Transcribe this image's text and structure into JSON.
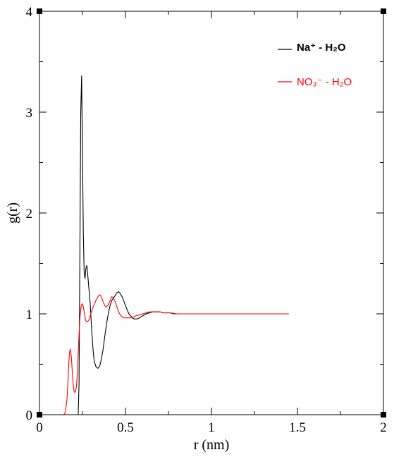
{
  "chart_data": {
    "type": "line",
    "xlabel": "r (nm)",
    "ylabel": "g(r)",
    "xlim": [
      0,
      2
    ],
    "ylim": [
      0,
      4
    ],
    "x_ticks": [
      0,
      0.5,
      1,
      1.5,
      2
    ],
    "x_tick_labels": [
      "0",
      "0.5",
      "1",
      "1.5",
      "2"
    ],
    "y_ticks": [
      0,
      1,
      2,
      3,
      4
    ],
    "y_tick_labels": [
      "0",
      "1",
      "2",
      "3",
      "4"
    ],
    "legend_position": "top-right",
    "series": [
      {
        "name": "Na⁺ - H₂O",
        "color": "#000000",
        "x": [
          0.15,
          0.17,
          0.19,
          0.2,
          0.208,
          0.215,
          0.22,
          0.225,
          0.23,
          0.235,
          0.24,
          0.245,
          0.25,
          0.255,
          0.26,
          0.265,
          0.27,
          0.275,
          0.28,
          0.285,
          0.29,
          0.295,
          0.3,
          0.305,
          0.31,
          0.315,
          0.32,
          0.33,
          0.34,
          0.35,
          0.36,
          0.37,
          0.38,
          0.39,
          0.4,
          0.41,
          0.42,
          0.43,
          0.44,
          0.45,
          0.46,
          0.47,
          0.48,
          0.49,
          0.5,
          0.51,
          0.52,
          0.53,
          0.54,
          0.55,
          0.56,
          0.57,
          0.58,
          0.59,
          0.6,
          0.62,
          0.64,
          0.66,
          0.68,
          0.7,
          0.72,
          0.74,
          0.76,
          0.78,
          0.8,
          0.85,
          0.9,
          0.95,
          1.0,
          1.05,
          1.1,
          1.15,
          1.2,
          1.25,
          1.3,
          1.35,
          1.4,
          1.45
        ],
        "y": [
          0.0,
          0.0,
          0.0,
          0.0,
          0.0,
          0.0,
          0.0,
          0.0,
          0.3,
          1.6,
          3.0,
          3.36,
          2.6,
          1.8,
          1.4,
          1.35,
          1.45,
          1.48,
          1.4,
          1.3,
          1.2,
          1.1,
          0.95,
          0.8,
          0.68,
          0.58,
          0.52,
          0.47,
          0.46,
          0.48,
          0.55,
          0.65,
          0.78,
          0.9,
          1.0,
          1.08,
          1.13,
          1.16,
          1.18,
          1.21,
          1.22,
          1.2,
          1.17,
          1.13,
          1.08,
          1.04,
          1.0,
          0.98,
          0.96,
          0.95,
          0.95,
          0.95,
          0.96,
          0.97,
          0.98,
          1.0,
          1.01,
          1.02,
          1.02,
          1.02,
          1.01,
          1.01,
          1.01,
          1.0,
          1.0,
          1.0,
          1.0,
          1.0,
          1.0,
          1.0,
          1.0,
          1.0,
          1.0,
          1.0,
          1.0,
          1.0,
          1.0,
          1.0
        ]
      },
      {
        "name": "NO₃⁻ - H₂O",
        "color": "#ff0000",
        "x": [
          0.14,
          0.15,
          0.16,
          0.165,
          0.17,
          0.175,
          0.18,
          0.185,
          0.19,
          0.195,
          0.2,
          0.205,
          0.21,
          0.215,
          0.22,
          0.225,
          0.23,
          0.235,
          0.24,
          0.245,
          0.25,
          0.255,
          0.26,
          0.265,
          0.27,
          0.28,
          0.29,
          0.3,
          0.31,
          0.32,
          0.33,
          0.34,
          0.35,
          0.36,
          0.37,
          0.38,
          0.39,
          0.4,
          0.41,
          0.42,
          0.43,
          0.44,
          0.45,
          0.46,
          0.47,
          0.48,
          0.49,
          0.5,
          0.51,
          0.52,
          0.53,
          0.54,
          0.55,
          0.56,
          0.58,
          0.6,
          0.62,
          0.64,
          0.66,
          0.68,
          0.7,
          0.72,
          0.74,
          0.76,
          0.8,
          0.85,
          0.9,
          0.95,
          1.0,
          1.05,
          1.1,
          1.15,
          1.2,
          1.25,
          1.3,
          1.35,
          1.4,
          1.45
        ],
        "y": [
          0.0,
          0.02,
          0.15,
          0.3,
          0.5,
          0.62,
          0.65,
          0.58,
          0.45,
          0.32,
          0.24,
          0.22,
          0.23,
          0.28,
          0.4,
          0.6,
          0.8,
          0.95,
          1.05,
          1.09,
          1.1,
          1.07,
          1.02,
          0.96,
          0.93,
          0.92,
          0.95,
          1.01,
          1.06,
          1.1,
          1.14,
          1.17,
          1.19,
          1.17,
          1.12,
          1.08,
          1.07,
          1.09,
          1.13,
          1.17,
          1.16,
          1.12,
          1.07,
          1.02,
          0.99,
          0.97,
          0.96,
          0.96,
          0.96,
          0.96,
          0.96,
          0.97,
          0.97,
          0.98,
          0.99,
          1.0,
          1.01,
          1.02,
          1.02,
          1.02,
          1.02,
          1.01,
          1.01,
          1.01,
          1.0,
          1.0,
          1.0,
          1.0,
          1.0,
          1.0,
          1.0,
          1.0,
          1.0,
          1.0,
          1.0,
          1.0,
          1.0,
          1.0
        ]
      }
    ]
  }
}
